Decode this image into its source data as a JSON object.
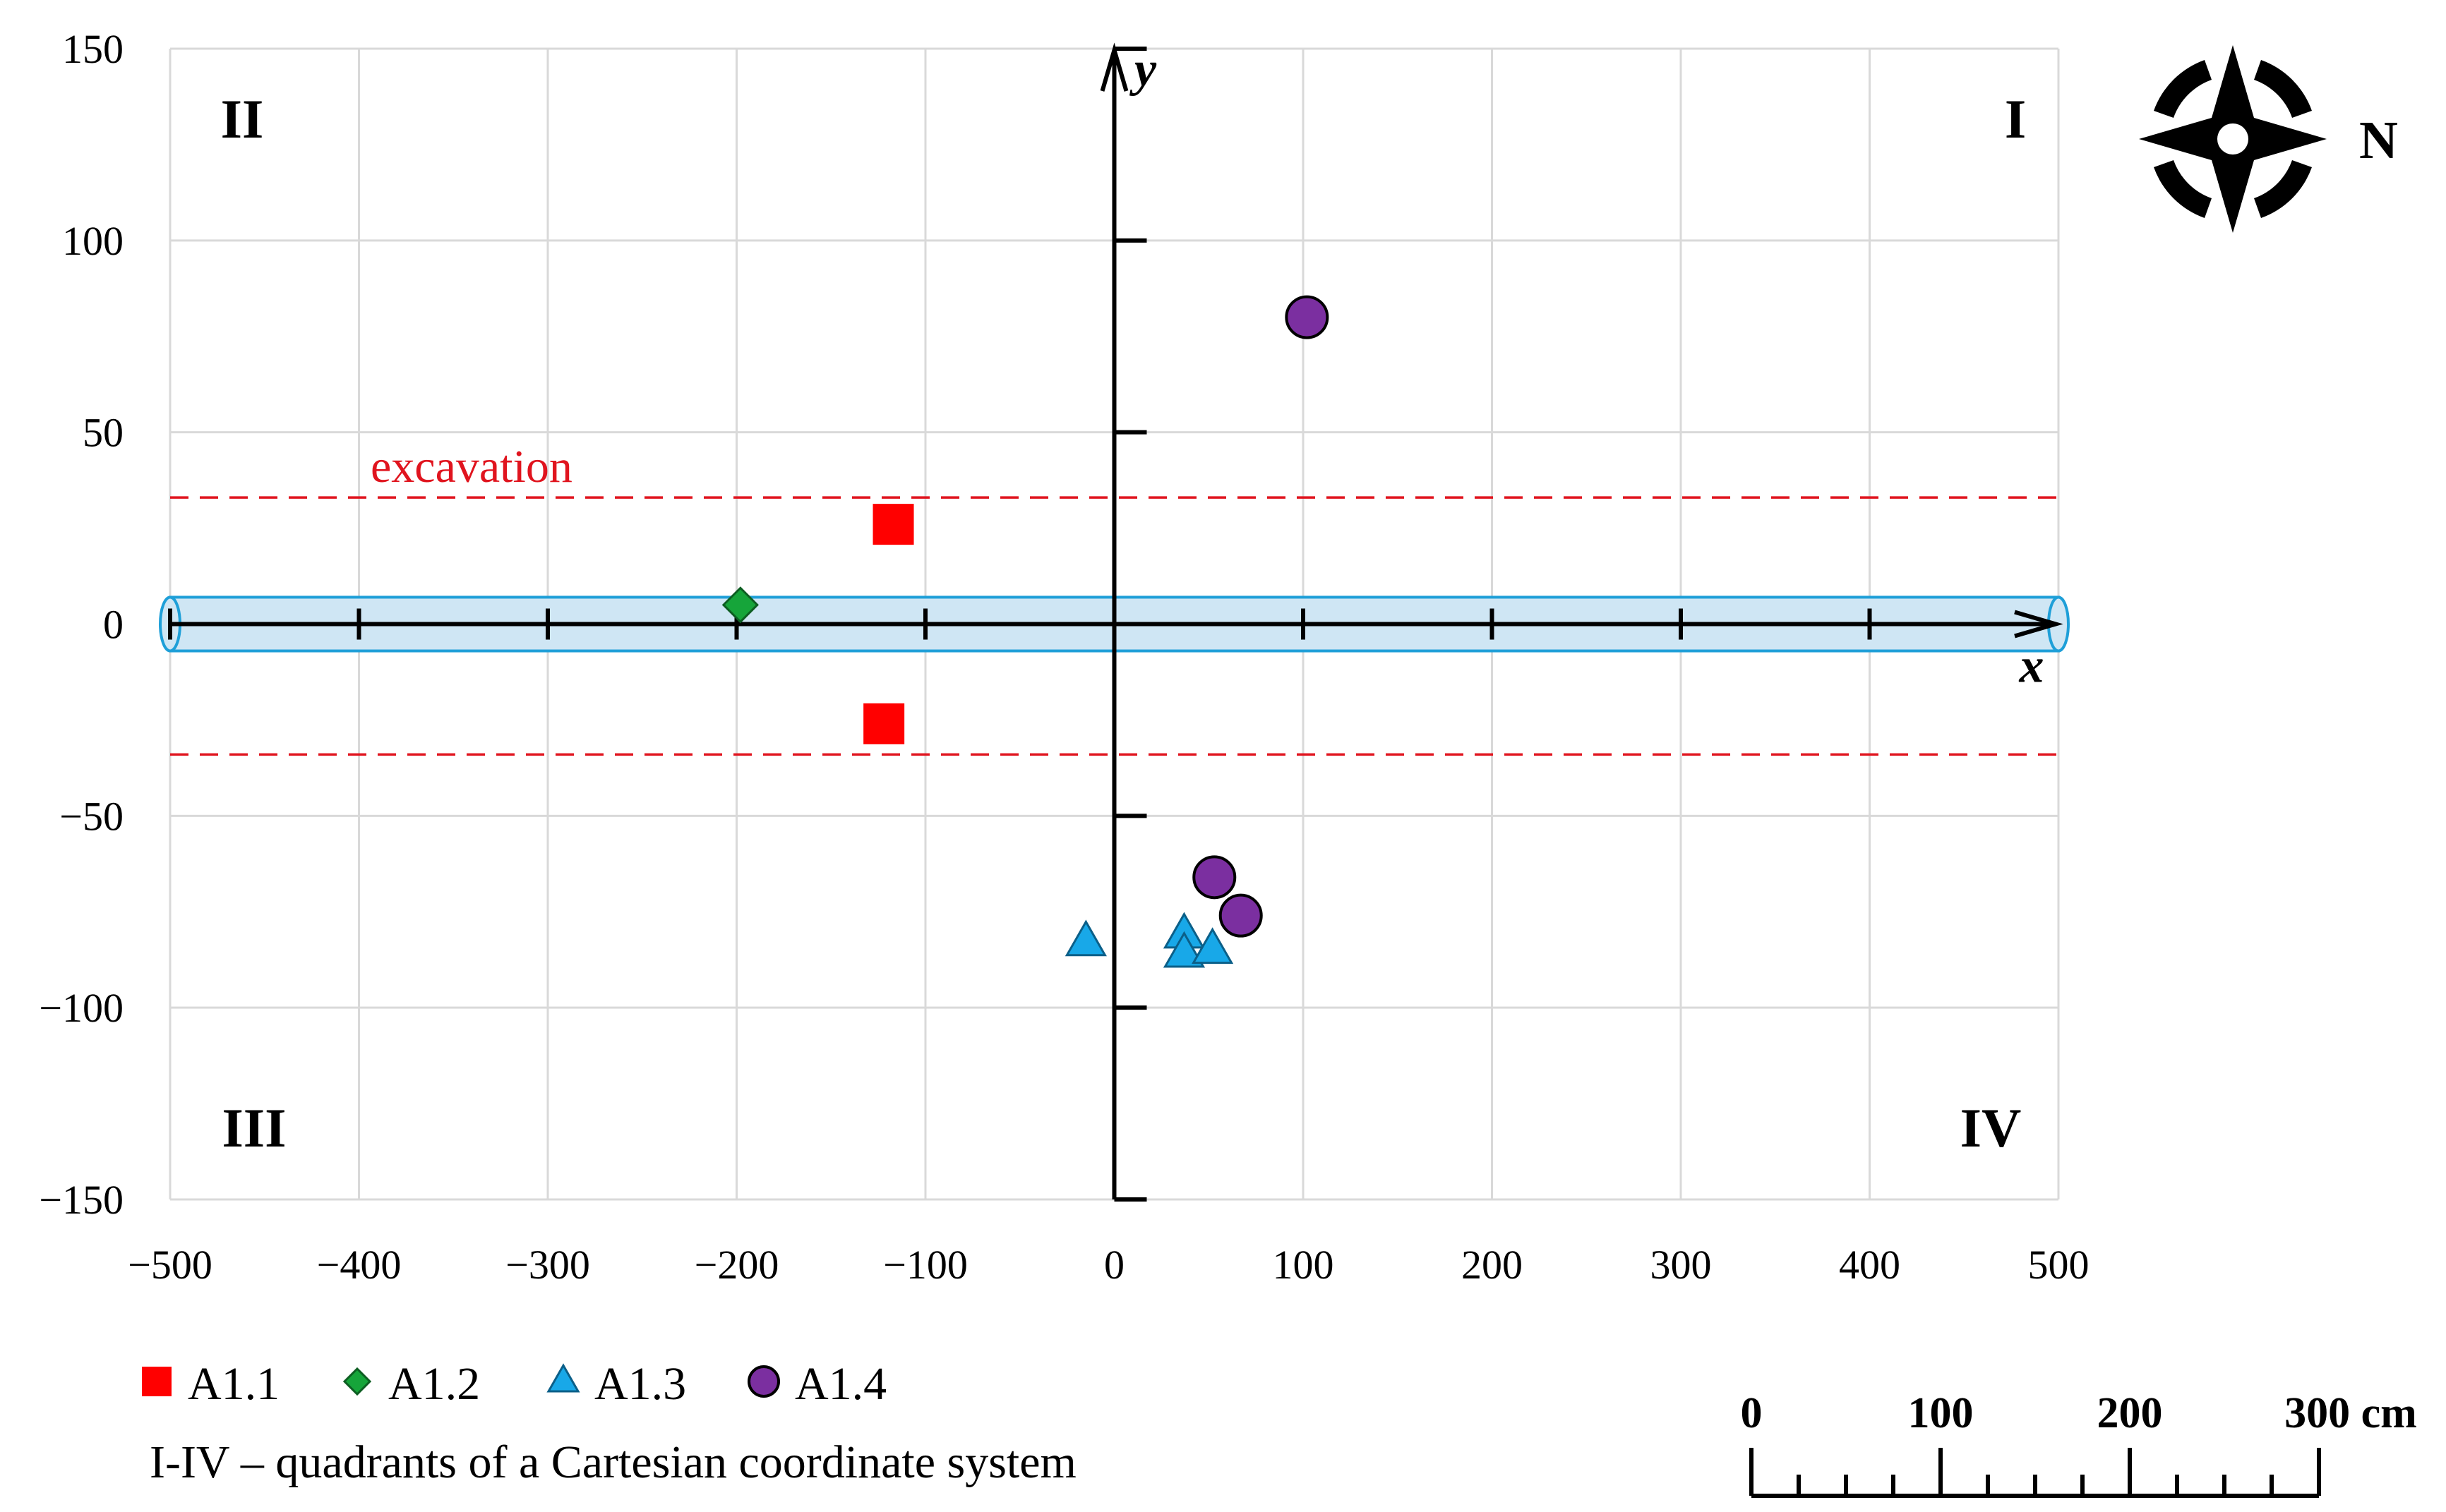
{
  "chart_data": {
    "type": "scatter",
    "xlim": [
      -500,
      500
    ],
    "ylim": [
      -150,
      150
    ],
    "x_ticks": [
      -500,
      -400,
      -300,
      -200,
      -100,
      0,
      100,
      200,
      300,
      400,
      500
    ],
    "y_ticks": [
      150,
      100,
      50,
      0,
      -50,
      -100,
      -150
    ],
    "x_tick_labels": [
      "−500",
      "−400",
      "−300",
      "−200",
      "−100",
      "0",
      "100",
      "200",
      "300",
      "400",
      "500"
    ],
    "y_tick_labels": [
      "150",
      "100",
      "50",
      "0",
      "−50",
      "−100",
      "−150"
    ],
    "grid": true,
    "xlabel": "x",
    "ylabel": "y",
    "quadrants": [
      {
        "label": "I",
        "position": "top-right"
      },
      {
        "label": "II",
        "position": "top-left"
      },
      {
        "label": "III",
        "position": "bottom-left"
      },
      {
        "label": "IV",
        "position": "bottom-right"
      }
    ],
    "excavation": {
      "label": "excavation",
      "upper": 33,
      "lower": -34,
      "color": "#e0141e"
    },
    "pipe": {
      "y_half_width": 7,
      "x_range": [
        -500,
        500
      ],
      "color": "#1e9fd8"
    },
    "series": [
      {
        "name": "A1.1",
        "marker": "square",
        "color": "#ff0000",
        "points": [
          [
            -117,
            26
          ],
          [
            -122,
            -26
          ]
        ]
      },
      {
        "name": "A1.2",
        "marker": "diamond",
        "color": "#16a53a",
        "points": [
          [
            -198,
            5
          ]
        ]
      },
      {
        "name": "A1.3",
        "marker": "triangle",
        "color": "#18a8e8",
        "points": [
          [
            -15,
            -83
          ],
          [
            37,
            -81
          ],
          [
            37,
            -86
          ],
          [
            52,
            -85
          ]
        ]
      },
      {
        "name": "A1.4",
        "marker": "circle",
        "color": "#7b2fa0",
        "points": [
          [
            102,
            80
          ],
          [
            53,
            -66
          ],
          [
            67,
            -76
          ]
        ]
      }
    ]
  },
  "legend_note": "I-IV – quadrants of a Cartesian coordinate system",
  "north_label": "N",
  "scale_bar": {
    "labels": [
      "0",
      "100",
      "200",
      "300 cm"
    ]
  }
}
